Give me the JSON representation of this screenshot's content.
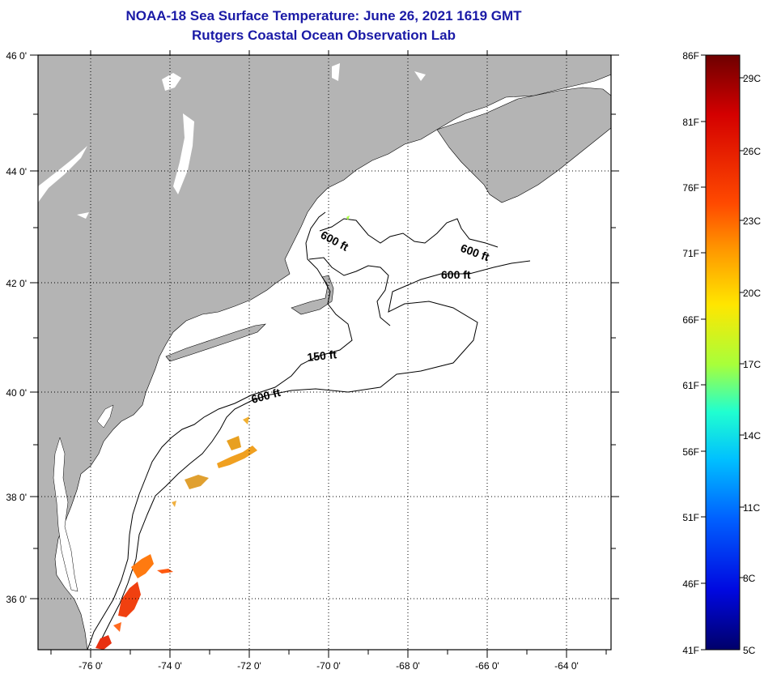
{
  "header": {
    "title_line1": "NOAA-18 Sea Surface Temperature:  June 26, 2021 1619 GMT",
    "title_line2": "Rutgers Coastal Ocean Observation Lab"
  },
  "map": {
    "lon_labels": [
      "-76 0'",
      "-74 0'",
      "-72 0'",
      "-70 0'",
      "-68 0'",
      "-66 0'",
      "-64 0'"
    ],
    "lat_labels": [
      "46 0'",
      "44 0'",
      "42 0'",
      "40 0'",
      "38 0'",
      "36 0'"
    ],
    "contour_labels": [
      "600 ft",
      "600 ft",
      "600 ft",
      "150 ft",
      "600 ft"
    ],
    "colors": {
      "land": "#b4b4b4",
      "water": "#ffffff"
    }
  },
  "colorbar": {
    "fahrenheit": [
      "86F",
      "81F",
      "76F",
      "71F",
      "66F",
      "61F",
      "56F",
      "51F",
      "46F",
      "41F"
    ],
    "celsius": [
      "29C",
      "26C",
      "23C",
      "20C",
      "17C",
      "14C",
      "11C",
      "8C",
      "5C"
    ],
    "colors": [
      "#7a0000",
      "#d40000",
      "#ff3000",
      "#ff8000",
      "#ffc800",
      "#ffff00",
      "#a0ff40",
      "#00ffc0",
      "#00c8ff",
      "#0070ff",
      "#0010ff",
      "#00007a"
    ]
  }
}
